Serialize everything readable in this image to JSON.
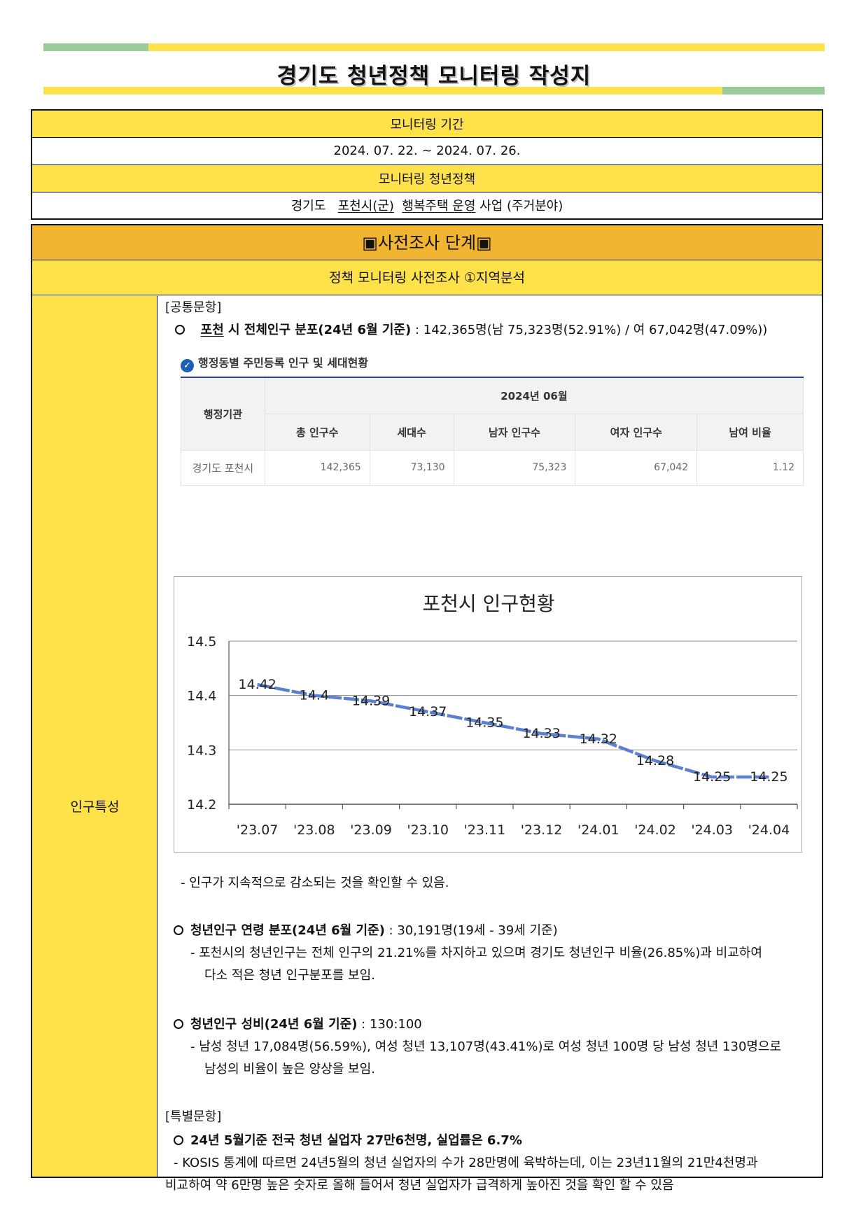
{
  "header": {
    "title": "경기도 청년정책 모니터링 작성지"
  },
  "colors": {
    "green": "#9ccb9a",
    "yellow": "#ffe14a",
    "orange": "#f1b531",
    "line": "#5b7fd1"
  },
  "meta": {
    "period_label": "모니터링 기간",
    "period_value": "2024. 07. 22. ~ 2024. 07. 26.",
    "policy_label": "모니터링 청년정책",
    "policy_prefix": "경기도",
    "policy_city": "포천",
    "policy_city_suffix": "시(군)",
    "policy_name": "행복주택 운영",
    "policy_suffix": "사업 (주거분야)"
  },
  "stage": {
    "title": "▣사전조사 단계▣",
    "subtitle": "정책 모니터링 사전조사 ①지역분석",
    "left_label": "인구특성"
  },
  "common": {
    "heading": "[공통문항]",
    "city": "포천",
    "item1_label": "시 전체인구 분포(24년 6월 기준)",
    "item1_value": ": 142,365명(남 75,323명(52.91%) / 여 67,042명(47.09%))"
  },
  "screenshot": {
    "title": "행정동별 주민등록 인구 및 세대현황",
    "col_agency": "행정기관",
    "period": "2024년 06월",
    "headers": [
      "총 인구수",
      "세대수",
      "남자 인구수",
      "여자 인구수",
      "남여 비율"
    ],
    "row_label": "경기도 포천시",
    "row_values": [
      "142,365",
      "73,130",
      "75,323",
      "67,042",
      "1.12"
    ]
  },
  "chart_data": {
    "type": "line",
    "title": "포천시 인구현황",
    "categories": [
      "'23.07",
      "'23.08",
      "'23.09",
      "'23.10",
      "'23.11",
      "'23.12",
      "'24.01",
      "'24.02",
      "'24.03",
      "'24.04"
    ],
    "values": [
      14.42,
      14.4,
      14.39,
      14.37,
      14.35,
      14.33,
      14.32,
      14.28,
      14.25,
      14.25
    ],
    "value_labels": [
      "14.42",
      "14.4",
      "14.39",
      "14.37",
      "14.35",
      "14.33",
      "14.32",
      "14.28",
      "14.25",
      "14.25"
    ],
    "ylim": [
      14.2,
      14.5
    ],
    "yticks": [
      "14.5",
      "14.4",
      "14.3",
      "14.2"
    ],
    "grid": true,
    "legend": "none"
  },
  "notes": {
    "chart_note": "- 인구가 지속적으로 감소되는 것을 확인할 수 있음.",
    "youth_label": "청년인구 연령 분포(24년 6월 기준)",
    "youth_value": ": 30,191명(19세 - 39세 기준)",
    "youth_desc1": "- 포천시의 청년인구는 전체 인구의 21.21%를 차지하고 있으며 경기도 청년인구 비율(26.85%)과 비교하여",
    "youth_desc2": "다소 적은 청년 인구분포를 보임.",
    "sex_label": "청년인구 성비(24년 6월 기준)",
    "sex_value": ": 130:100",
    "sex_desc1": "- 남성 청년 17,084명(56.59%), 여성 청년 13,107명(43.41%)로 여성 청년 100명 당 남성 청년 130명으로",
    "sex_desc2": "남성의 비율이 높은 양상을 보임."
  },
  "special": {
    "heading": "[특별문항]",
    "item_label": "24년 5월기준 전국 청년 실업자 27만6천명, 실업률은 6.7%",
    "desc1": "- KOSIS 통계에 따르면 24년5월의 청년 실업자의 수가 28만명에 육박하는데, 이는 23년11월의 21만4천명과",
    "desc2": "비교하여 약 6만명 높은 숫자로 올해 들어서 청년 실업자가 급격하게 높아진 것을 확인 할 수 있음"
  }
}
